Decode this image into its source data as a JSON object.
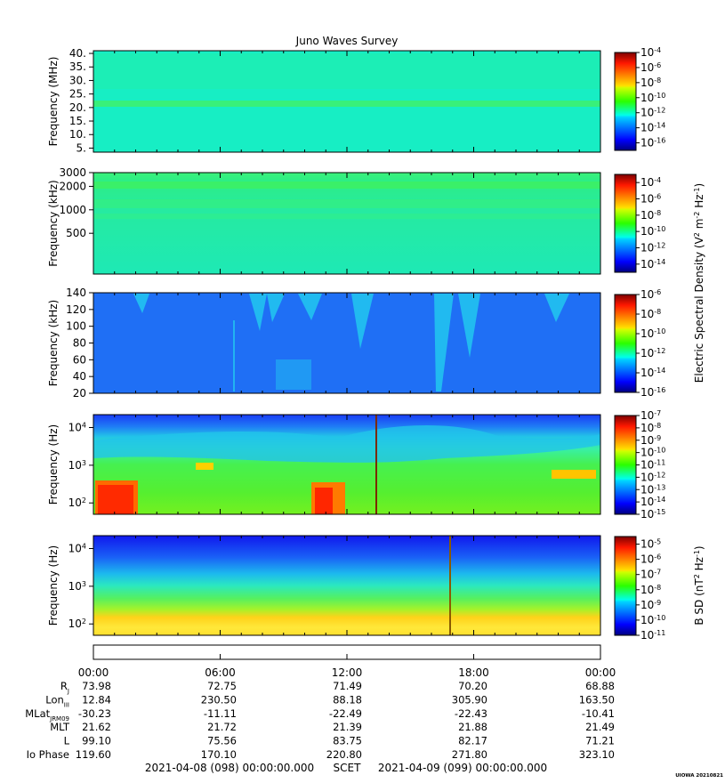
{
  "chart_data": {
    "type": "heatmap",
    "title": "Juno Waves Survey",
    "panels": [
      {
        "id": "hfr-high",
        "ylabel": "Frequency (MHz)",
        "yscale": "linear",
        "ylim": [
          3.5,
          41
        ],
        "yticks": [
          {
            "v": 5,
            "label": "5."
          },
          {
            "v": 10,
            "label": "10."
          },
          {
            "v": 15,
            "label": "15."
          },
          {
            "v": 20,
            "label": "20."
          },
          {
            "v": 25,
            "label": "25."
          },
          {
            "v": 30,
            "label": "30."
          },
          {
            "v": 35,
            "label": "35."
          },
          {
            "v": 40,
            "label": "40."
          }
        ],
        "colorbar": {
          "log_min": -17,
          "log_max": -4,
          "ticks": [
            {
              "e": -4
            },
            {
              "e": -6
            },
            {
              "e": -8
            },
            {
              "e": -10
            },
            {
              "e": -12
            },
            {
              "e": -14
            },
            {
              "e": -16
            }
          ]
        },
        "bands": [
          {
            "y": 21,
            "note": "enhanced band near 21 MHz"
          }
        ]
      },
      {
        "id": "hfr-low",
        "ylabel": "Frequency (kHz)",
        "yscale": "log",
        "ylim": [
          150,
          3000
        ],
        "yticks": [
          {
            "v": 500,
            "label": "500"
          },
          {
            "v": 1000,
            "label": "1000"
          },
          {
            "v": 2000,
            "label": "2000"
          },
          {
            "v": 3000,
            "label": "3000"
          }
        ],
        "colorbar": {
          "log_min": -15,
          "log_max": -3,
          "ticks": [
            {
              "e": -4
            },
            {
              "e": -6
            },
            {
              "e": -8
            },
            {
              "e": -10
            },
            {
              "e": -12
            },
            {
              "e": -14
            }
          ]
        }
      },
      {
        "id": "lfr-high",
        "ylabel": "Frequency (kHz)",
        "yscale": "linear",
        "ylim": [
          20,
          140
        ],
        "yticks": [
          {
            "v": 20,
            "label": "20"
          },
          {
            "v": 40,
            "label": "40"
          },
          {
            "v": 60,
            "label": "60"
          },
          {
            "v": 80,
            "label": "80"
          },
          {
            "v": 100,
            "label": "100"
          },
          {
            "v": 120,
            "label": "120"
          },
          {
            "v": 140,
            "label": "140"
          }
        ],
        "colorbar": {
          "log_min": -16,
          "log_max": -6,
          "ticks": [
            {
              "e": -6
            },
            {
              "e": -8
            },
            {
              "e": -10
            },
            {
              "e": -12
            },
            {
              "e": -14
            },
            {
              "e": -16
            }
          ]
        }
      },
      {
        "id": "lfr-e",
        "ylabel": "Frequency (Hz)",
        "yscale": "log",
        "ylim": [
          50,
          22000
        ],
        "yticks": [
          {
            "v": 100,
            "base": "10",
            "exp": "2"
          },
          {
            "v": 1000,
            "base": "10",
            "exp": "3"
          },
          {
            "v": 10000,
            "base": "10",
            "exp": "4"
          }
        ],
        "colorbar": {
          "log_min": -15,
          "log_max": -7,
          "ticks": [
            {
              "e": -7
            },
            {
              "e": -8
            },
            {
              "e": -9
            },
            {
              "e": -10
            },
            {
              "e": -11
            },
            {
              "e": -12
            },
            {
              "e": -13
            },
            {
              "e": -14
            },
            {
              "e": -15
            }
          ]
        }
      },
      {
        "id": "lfr-b",
        "ylabel": "Frequency (Hz)",
        "yscale": "log",
        "ylim": [
          50,
          22000
        ],
        "yticks": [
          {
            "v": 100,
            "base": "10",
            "exp": "2"
          },
          {
            "v": 1000,
            "base": "10",
            "exp": "3"
          },
          {
            "v": 10000,
            "base": "10",
            "exp": "4"
          }
        ],
        "colorbar": {
          "log_min": -11,
          "log_max": -4.5,
          "ticks": [
            {
              "e": -5
            },
            {
              "e": -6
            },
            {
              "e": -7
            },
            {
              "e": -8
            },
            {
              "e": -9
            },
            {
              "e": -10
            },
            {
              "e": -11
            }
          ]
        }
      }
    ],
    "colorbar_labels": {
      "electric": {
        "prefix": "Electric Spectral Density (V",
        "mid": " m",
        "mid2": " Hz",
        "end": ")"
      },
      "magnetic": {
        "prefix": "B SD (nT",
        "mid": " Hz",
        "end": ")"
      },
      "sup2": "2",
      "supm2": "-2",
      "supm1": "-1"
    },
    "x_axis": {
      "hours": [
        0,
        6,
        12,
        18,
        24
      ],
      "labels": [
        "00:00",
        "06:00",
        "12:00",
        "18:00",
        "00:00"
      ],
      "minor_step_hours": 1
    },
    "ephemeris": [
      {
        "label": "R",
        "sub": "J",
        "values": [
          "73.98",
          "72.75",
          "71.49",
          "70.20",
          "68.88"
        ]
      },
      {
        "label": "Lon",
        "sub": "III",
        "values": [
          "12.84",
          "230.50",
          "88.18",
          "305.90",
          "163.50"
        ]
      },
      {
        "label": "MLat",
        "sub": "JRM09",
        "values": [
          "-30.23",
          "-11.11",
          "-22.49",
          "-22.43",
          "-10.41"
        ]
      },
      {
        "label": "MLT",
        "sub": "",
        "values": [
          "21.62",
          "21.72",
          "21.39",
          "21.88",
          "21.49"
        ]
      },
      {
        "label": "L",
        "sub": "",
        "values": [
          "99.10",
          "75.56",
          "83.75",
          "82.17",
          "71.21"
        ]
      },
      {
        "label": "Io Phase",
        "sub": "",
        "values": [
          "119.60",
          "170.10",
          "220.80",
          "271.80",
          "323.10"
        ]
      }
    ],
    "footer": {
      "start": "2021-04-08 (098) 00:00:00.000",
      "scet": "SCET",
      "end": "2021-04-09 (099) 00:00:00.000"
    },
    "stamp": "UIOWA 20210821"
  }
}
